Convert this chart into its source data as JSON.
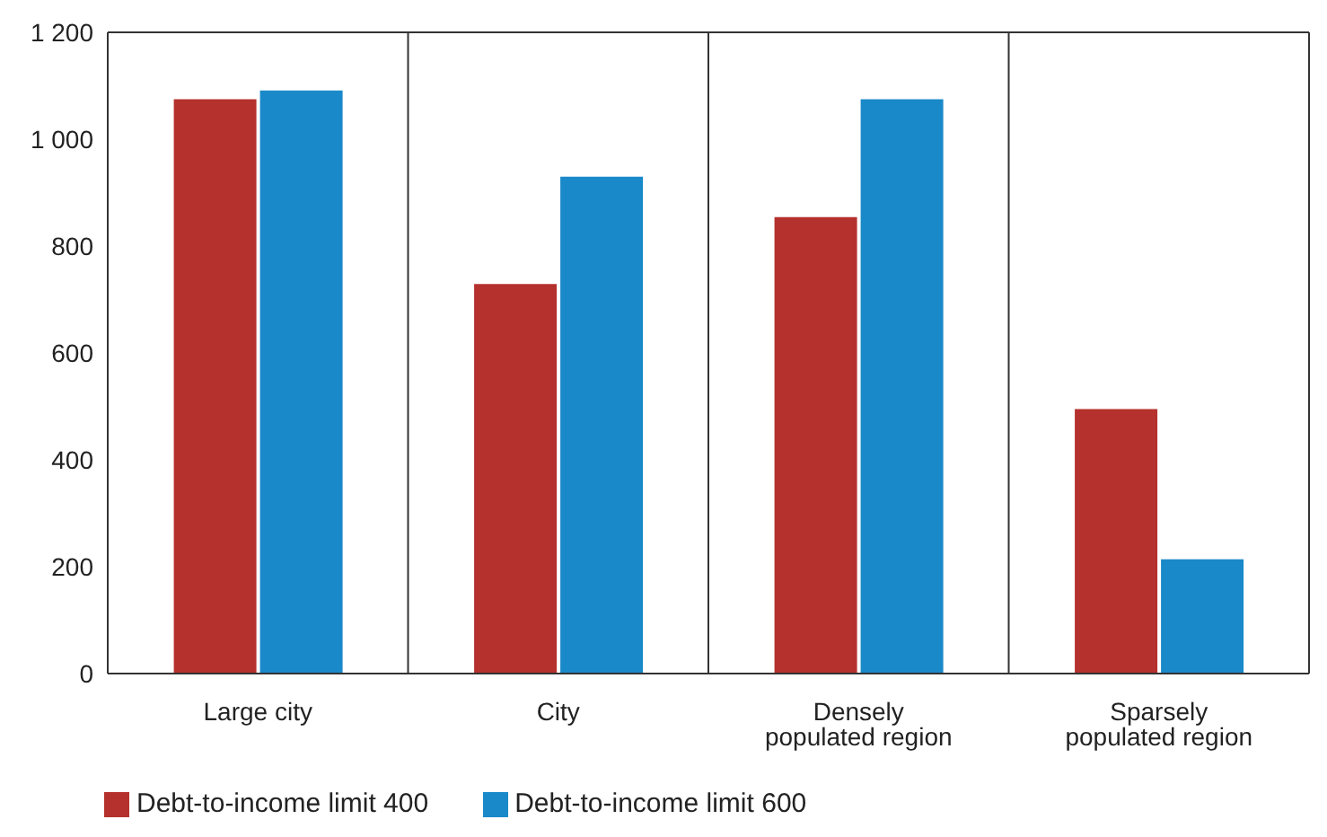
{
  "chart_data": {
    "type": "bar",
    "categories": [
      "Large city",
      "City",
      "Densely populated region",
      "Sparsely populated region"
    ],
    "series": [
      {
        "name": "Debt-to-income limit 400",
        "color": "#b5312d",
        "values": [
          1075,
          729,
          854,
          495
        ]
      },
      {
        "name": "Debt-to-income limit 600",
        "color": "#1a89c9",
        "values": [
          1091,
          930,
          1075,
          214
        ]
      }
    ],
    "ylim": [
      0,
      1200
    ],
    "yticks": [
      0,
      200,
      400,
      600,
      800,
      {
        "value": 1000,
        "label": "1 000"
      },
      {
        "value": 1200,
        "label": "1 200"
      }
    ],
    "grid": "x",
    "legend": "bottom left"
  }
}
